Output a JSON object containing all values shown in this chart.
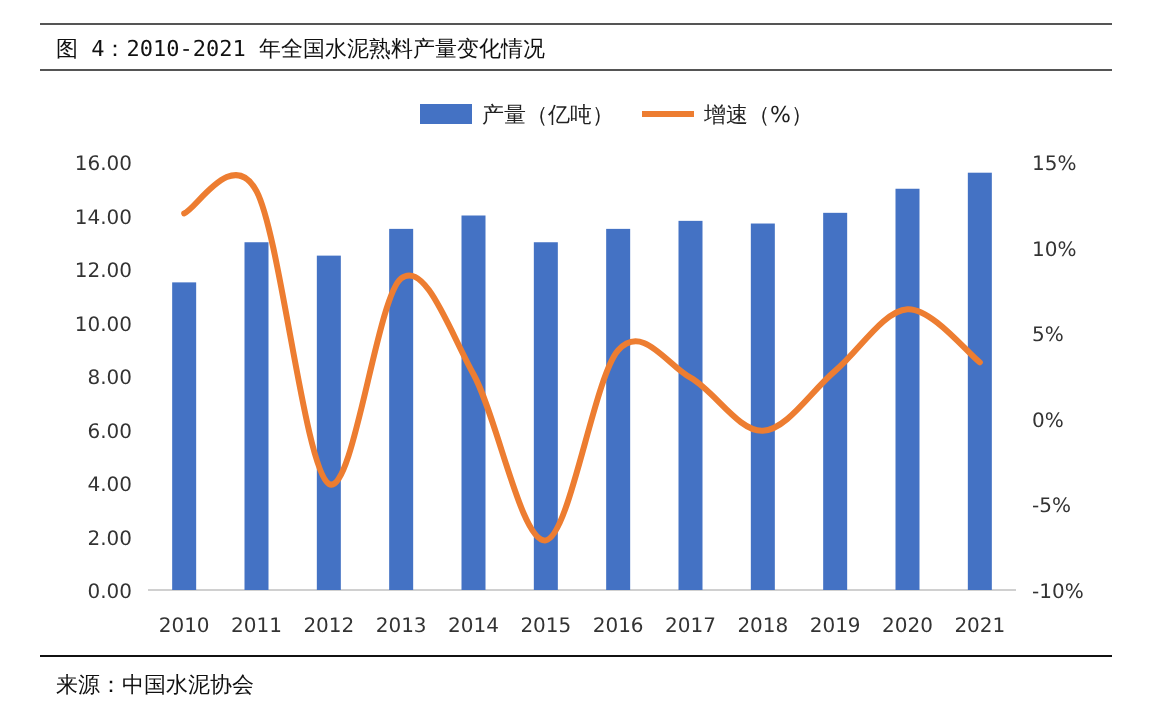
{
  "chart_data": {
    "type": "bar",
    "title": "图 4：2010-2021 年全国水泥熟料产量变化情况",
    "annotations": [
      "来源：中国水泥协会"
    ],
    "categories": [
      "2010",
      "2011",
      "2012",
      "2013",
      "2014",
      "2015",
      "2016",
      "2017",
      "2018",
      "2019",
      "2020",
      "2021"
    ],
    "series": [
      {
        "name": "产量（亿吨）",
        "color": "#4472c4",
        "values": [
          11.5,
          13.0,
          12.5,
          13.5,
          14.0,
          13.0,
          13.5,
          13.8,
          13.7,
          14.1,
          15.0,
          15.6
        ]
      },
      {
        "name": "增速（%）",
        "type": "line",
        "axis": "y2",
        "color": "#ed7d31",
        "values": [
          12.0,
          13.3,
          -3.8,
          8.2,
          2.6,
          -7.1,
          4.0,
          2.4,
          -0.7,
          2.8,
          6.4,
          3.3
        ]
      }
    ],
    "ylim": [
      0,
      16
    ],
    "yticks": [
      {
        "value": 0,
        "label": "0.00"
      },
      {
        "value": 2,
        "label": "2.00"
      },
      {
        "value": 4,
        "label": "4.00"
      },
      {
        "value": 6,
        "label": "6.00"
      },
      {
        "value": 8,
        "label": "8.00"
      },
      {
        "value": 10,
        "label": "10.00"
      },
      {
        "value": 12,
        "label": "12.00"
      },
      {
        "value": 14,
        "label": "14.00"
      },
      {
        "value": 16,
        "label": "16.00"
      }
    ],
    "y2lim": [
      -10,
      15
    ],
    "y2ticks": [
      {
        "value": -10,
        "label": "-10%"
      },
      {
        "value": -5,
        "label": "-5%"
      },
      {
        "value": 0,
        "label": "0%"
      },
      {
        "value": 5,
        "label": "5%"
      },
      {
        "value": 10,
        "label": "10%"
      },
      {
        "value": 15,
        "label": "15%"
      }
    ],
    "legend": "top"
  }
}
